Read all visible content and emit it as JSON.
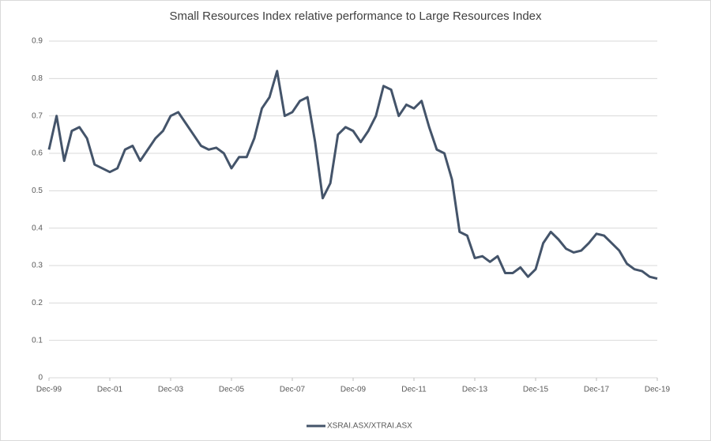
{
  "chart_data": {
    "type": "line",
    "title": "Small Resources Index relative performance to Large Resources Index",
    "categories": [
      "Dec-99",
      null,
      null,
      null,
      null,
      null,
      null,
      null,
      "Dec-01",
      null,
      null,
      null,
      null,
      null,
      null,
      null,
      "Dec-03",
      null,
      null,
      null,
      null,
      null,
      null,
      null,
      "Dec-05",
      null,
      null,
      null,
      null,
      null,
      null,
      null,
      "Dec-07",
      null,
      null,
      null,
      null,
      null,
      null,
      null,
      "Dec-09",
      null,
      null,
      null,
      null,
      null,
      null,
      null,
      "Dec-11",
      null,
      null,
      null,
      null,
      null,
      null,
      null,
      "Dec-13",
      null,
      null,
      null,
      null,
      null,
      null,
      null,
      "Dec-15",
      null,
      null,
      null,
      null,
      null,
      null,
      null,
      "Dec-17",
      null,
      null,
      null,
      null,
      null,
      null,
      null,
      "Dec-19"
    ],
    "series": [
      {
        "name": "XSRAI.ASX/XTRAI.ASX",
        "color": "#44546a",
        "values": [
          0.61,
          0.7,
          0.58,
          0.66,
          0.67,
          0.64,
          0.57,
          0.56,
          0.55,
          0.56,
          0.61,
          0.62,
          0.58,
          0.61,
          0.64,
          0.66,
          0.7,
          0.71,
          0.68,
          0.65,
          0.62,
          0.61,
          0.615,
          0.6,
          0.56,
          0.59,
          0.59,
          0.64,
          0.72,
          0.75,
          0.82,
          0.7,
          0.71,
          0.74,
          0.75,
          0.63,
          0.48,
          0.52,
          0.65,
          0.67,
          0.66,
          0.63,
          0.66,
          0.7,
          0.78,
          0.77,
          0.7,
          0.73,
          0.72,
          0.74,
          0.67,
          0.61,
          0.6,
          0.53,
          0.39,
          0.38,
          0.32,
          0.325,
          0.31,
          0.325,
          0.28,
          0.28,
          0.295,
          0.27,
          0.29,
          0.36,
          0.39,
          0.37,
          0.345,
          0.335,
          0.34,
          0.36,
          0.385,
          0.38,
          0.36,
          0.34,
          0.305,
          0.29,
          0.285,
          0.27,
          0.265
        ]
      }
    ],
    "ylim": [
      0,
      0.9
    ],
    "yticks": [
      0,
      0.1,
      0.2,
      0.3,
      0.4,
      0.5,
      0.6,
      0.7,
      0.8,
      0.9
    ],
    "grid": true,
    "legend": "bottom"
  }
}
